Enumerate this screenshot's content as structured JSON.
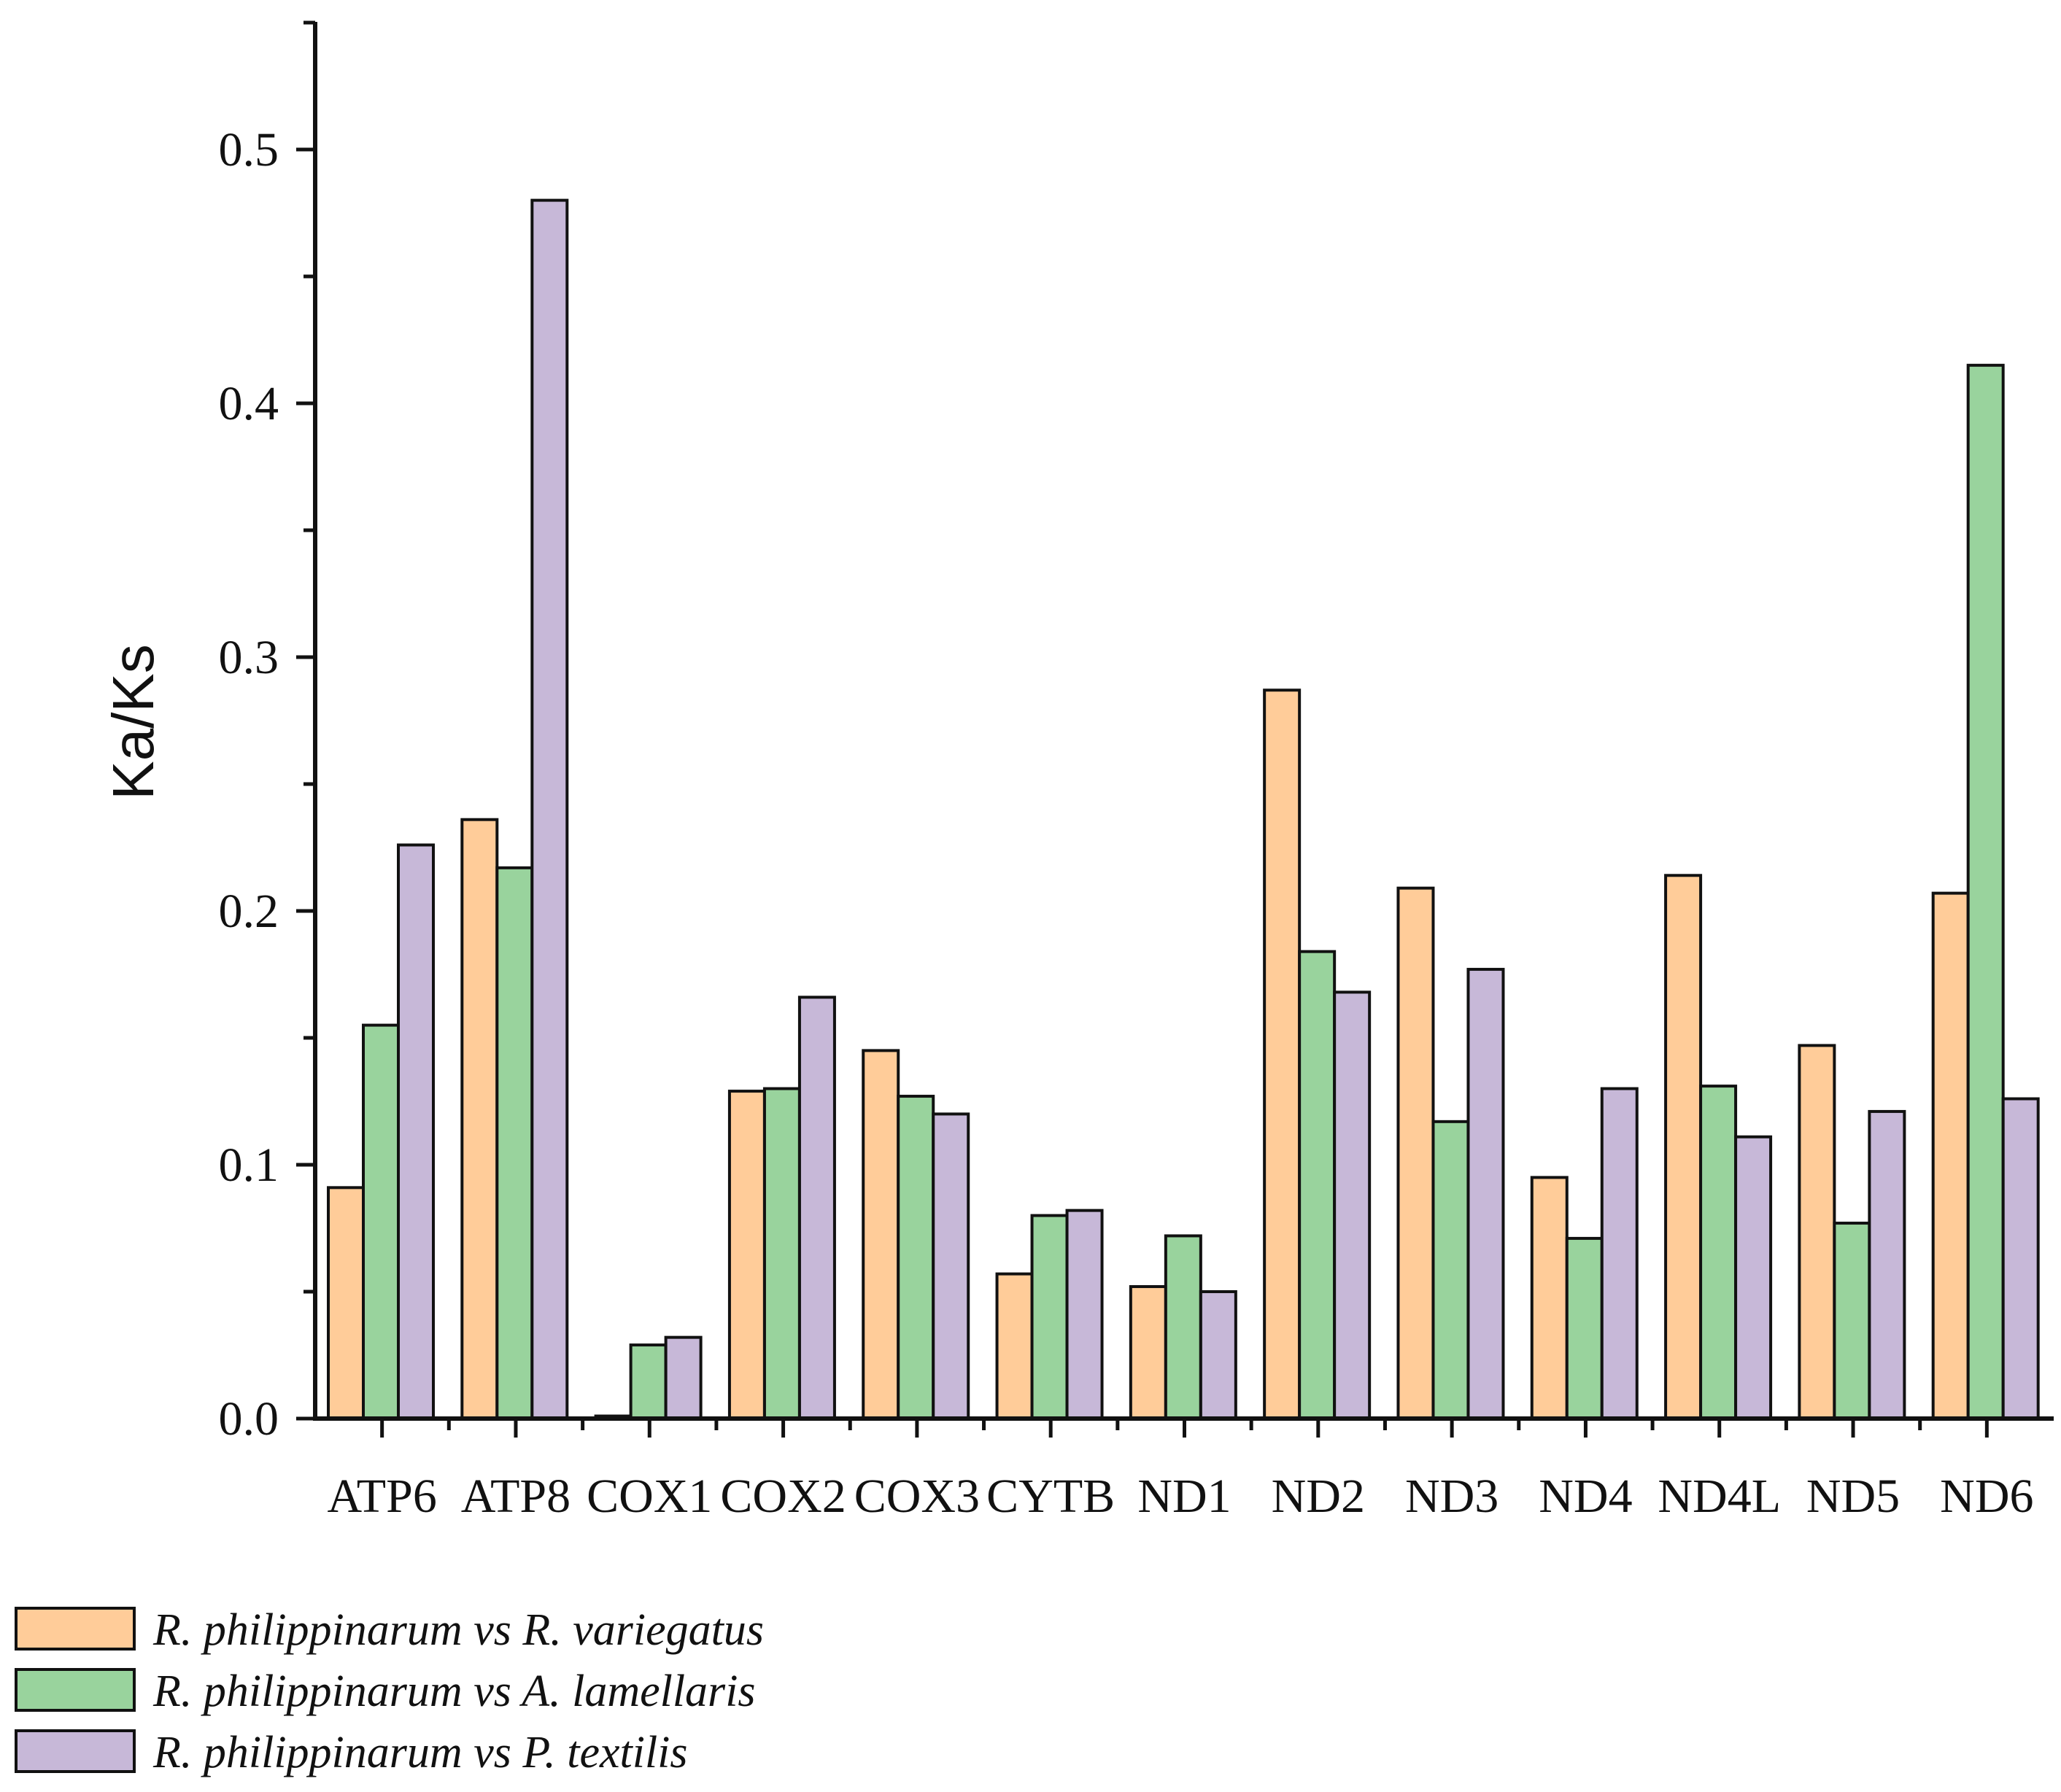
{
  "chart_data": {
    "type": "bar",
    "title": "",
    "xlabel": "",
    "ylabel": "Ka/Ks",
    "ylim": [
      0,
      0.55
    ],
    "yticks": [
      "0.0",
      "0.1",
      "0.2",
      "0.3",
      "0.4",
      "0.5"
    ],
    "grid": false,
    "legend_position": "bottom-left",
    "categories": [
      "ATP6",
      "ATP8",
      "COX1",
      "COX2",
      "COX3",
      "CYTB",
      "ND1",
      "ND2",
      "ND3",
      "ND4",
      "ND4L",
      "ND5",
      "ND6"
    ],
    "series": [
      {
        "name": "R. philippinarum vs R. variegatus",
        "name_parts": [
          "R. philippinarum",
          " vs ",
          "R. variegatus"
        ],
        "color": "#FFCC99",
        "values": [
          0.091,
          0.236,
          0.001,
          0.129,
          0.145,
          0.057,
          0.052,
          0.287,
          0.209,
          0.095,
          0.214,
          0.147,
          0.207
        ]
      },
      {
        "name": "R. philippinarum vs A. lamellaris",
        "name_parts": [
          "R. philippinarum",
          " vs ",
          "A. lamellaris"
        ],
        "color": "#99D39D",
        "values": [
          0.155,
          0.217,
          0.029,
          0.13,
          0.127,
          0.08,
          0.072,
          0.184,
          0.117,
          0.071,
          0.131,
          0.077,
          0.415
        ]
      },
      {
        "name": "R. philippinarum vs P. textilis",
        "name_parts": [
          "R. philippinarum",
          " vs ",
          "P. textilis"
        ],
        "color": "#C7B8D8",
        "values": [
          0.226,
          0.48,
          0.032,
          0.166,
          0.12,
          0.082,
          0.05,
          0.168,
          0.177,
          0.13,
          0.111,
          0.121,
          0.126
        ]
      }
    ]
  }
}
